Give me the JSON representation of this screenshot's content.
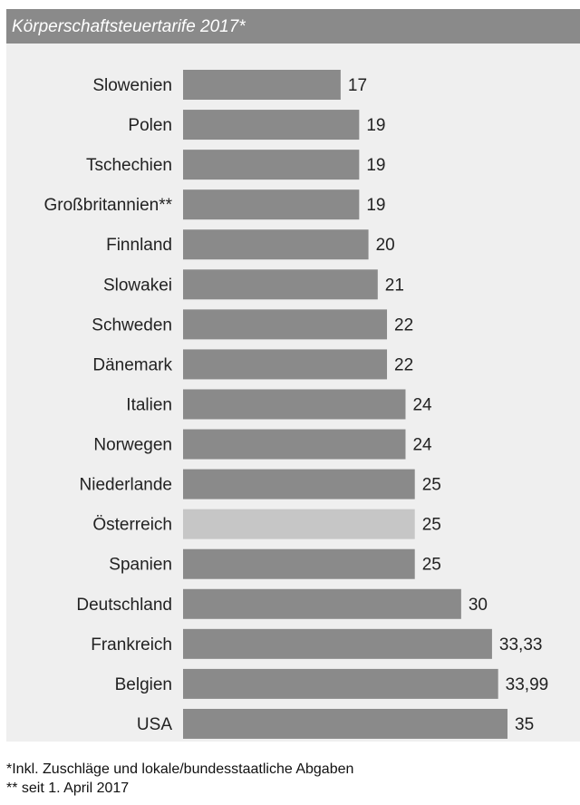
{
  "chart_data": {
    "type": "bar",
    "orientation": "horizontal",
    "title": "Körperschaftsteuertarife 2017*",
    "categories": [
      "Slowenien",
      "Polen",
      "Tschechien",
      "Großbritannien**",
      "Finnland",
      "Slowakei",
      "Schweden",
      "Dänemark",
      "Italien",
      "Norwegen",
      "Niederlande",
      "Österreich",
      "Spanien",
      "Deutschland",
      "Frankreich",
      "Belgien",
      "USA"
    ],
    "values": [
      17,
      19,
      19,
      19,
      20,
      21,
      22,
      22,
      24,
      24,
      25,
      25,
      25,
      30,
      33.33,
      33.99,
      35
    ],
    "value_labels": [
      "17",
      "19",
      "19",
      "19",
      "20",
      "21",
      "22",
      "22",
      "24",
      "24",
      "25",
      "25",
      "25",
      "30",
      "33,33",
      "33,99",
      "35"
    ],
    "highlight_category": "Österreich",
    "colors": {
      "bar": "#8a8a8a",
      "highlight": "#c6c6c6",
      "background": "#efefef",
      "title_bar": "#8a8a8a"
    },
    "xlim": [
      0,
      35
    ],
    "grid": false,
    "legend": "none"
  },
  "footnotes": [
    "*Inkl. Zuschläge und lokale/bundesstaatliche Abgaben",
    "** seit 1. April 2017"
  ]
}
